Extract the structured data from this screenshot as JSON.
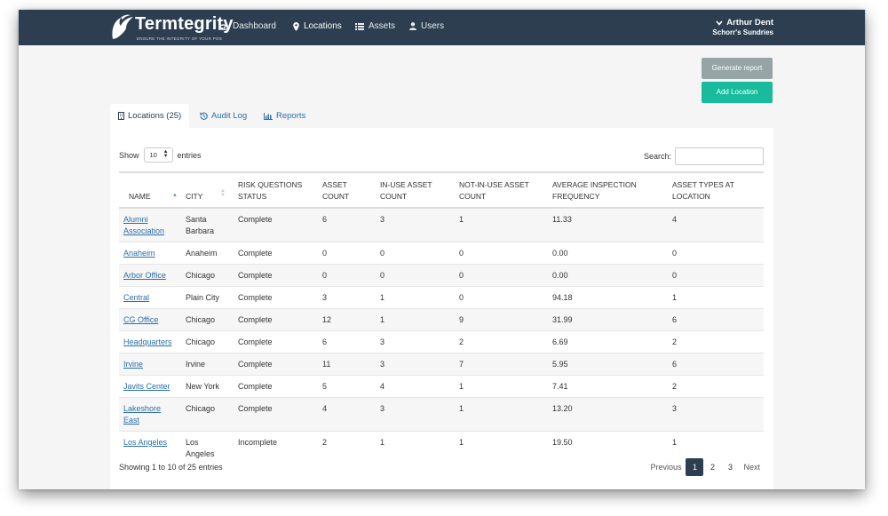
{
  "brand": {
    "name": "Termtegrity",
    "tagline": "ENSURE THE INTEGRITY OF YOUR POS"
  },
  "nav": [
    {
      "label": "Dashboard",
      "icon": "dashboard-icon"
    },
    {
      "label": "Locations",
      "icon": "map-marker-icon",
      "active": true
    },
    {
      "label": "Assets",
      "icon": "list-icon"
    },
    {
      "label": "Users",
      "icon": "user-icon"
    }
  ],
  "user": {
    "name": "Arthur Dent",
    "org": "Schorr's Sundries"
  },
  "buttons": {
    "generate_report": "Generate report",
    "add_location": "Add Location"
  },
  "tabs": [
    {
      "label": "Locations (25)",
      "icon": "building-icon",
      "active": true
    },
    {
      "label": "Audit Log",
      "icon": "history-icon"
    },
    {
      "label": "Reports",
      "icon": "bar-chart-icon"
    }
  ],
  "table_controls": {
    "show_label": "Show",
    "entries_value": "10",
    "entries_label": "entries",
    "search_label": "Search:"
  },
  "columns": [
    "NAME",
    "CITY",
    "RISK QUESTIONS STATUS",
    "ASSET COUNT",
    "IN-USE ASSET COUNT",
    "NOT-IN-USE ASSET COUNT",
    "AVERAGE INSPECTION FREQUENCY",
    "ASSET TYPES AT LOCATION"
  ],
  "rows": [
    [
      "Alumni Association",
      "Santa Barbara",
      "Complete",
      "6",
      "3",
      "1",
      "11.33",
      "4"
    ],
    [
      "Anaheim",
      "Anaheim",
      "Complete",
      "0",
      "0",
      "0",
      "0.00",
      "0"
    ],
    [
      "Arbor Office",
      "Chicago",
      "Complete",
      "0",
      "0",
      "0",
      "0.00",
      "0"
    ],
    [
      "Central",
      "Plain City",
      "Complete",
      "3",
      "1",
      "0",
      "94.18",
      "1"
    ],
    [
      "CG Office",
      "Chicago",
      "Complete",
      "12",
      "1",
      "9",
      "31.99",
      "6"
    ],
    [
      "Headquarters",
      "Chicago",
      "Complete",
      "6",
      "3",
      "2",
      "6.69",
      "2"
    ],
    [
      "Irvine",
      "Irvine",
      "Complete",
      "11",
      "3",
      "7",
      "5.95",
      "6"
    ],
    [
      "Javits Center",
      "New York",
      "Complete",
      "5",
      "4",
      "1",
      "7.41",
      "2"
    ],
    [
      "Lakeshore East",
      "Chicago",
      "Complete",
      "4",
      "3",
      "1",
      "13.20",
      "3"
    ],
    [
      "Los Angeles",
      "Los Angeles",
      "Incomplete",
      "2",
      "1",
      "1",
      "19.50",
      "1"
    ]
  ],
  "footer": {
    "info": "Showing 1 to 10 of 25 entries",
    "previous": "Previous",
    "pages": [
      "1",
      "2",
      "3"
    ],
    "current_page": "1",
    "next": "Next"
  },
  "colors": {
    "navbar": "#2c3e50",
    "accent": "#18bc9c",
    "muted_button": "#95a5a6",
    "link": "#2c6ea8"
  }
}
